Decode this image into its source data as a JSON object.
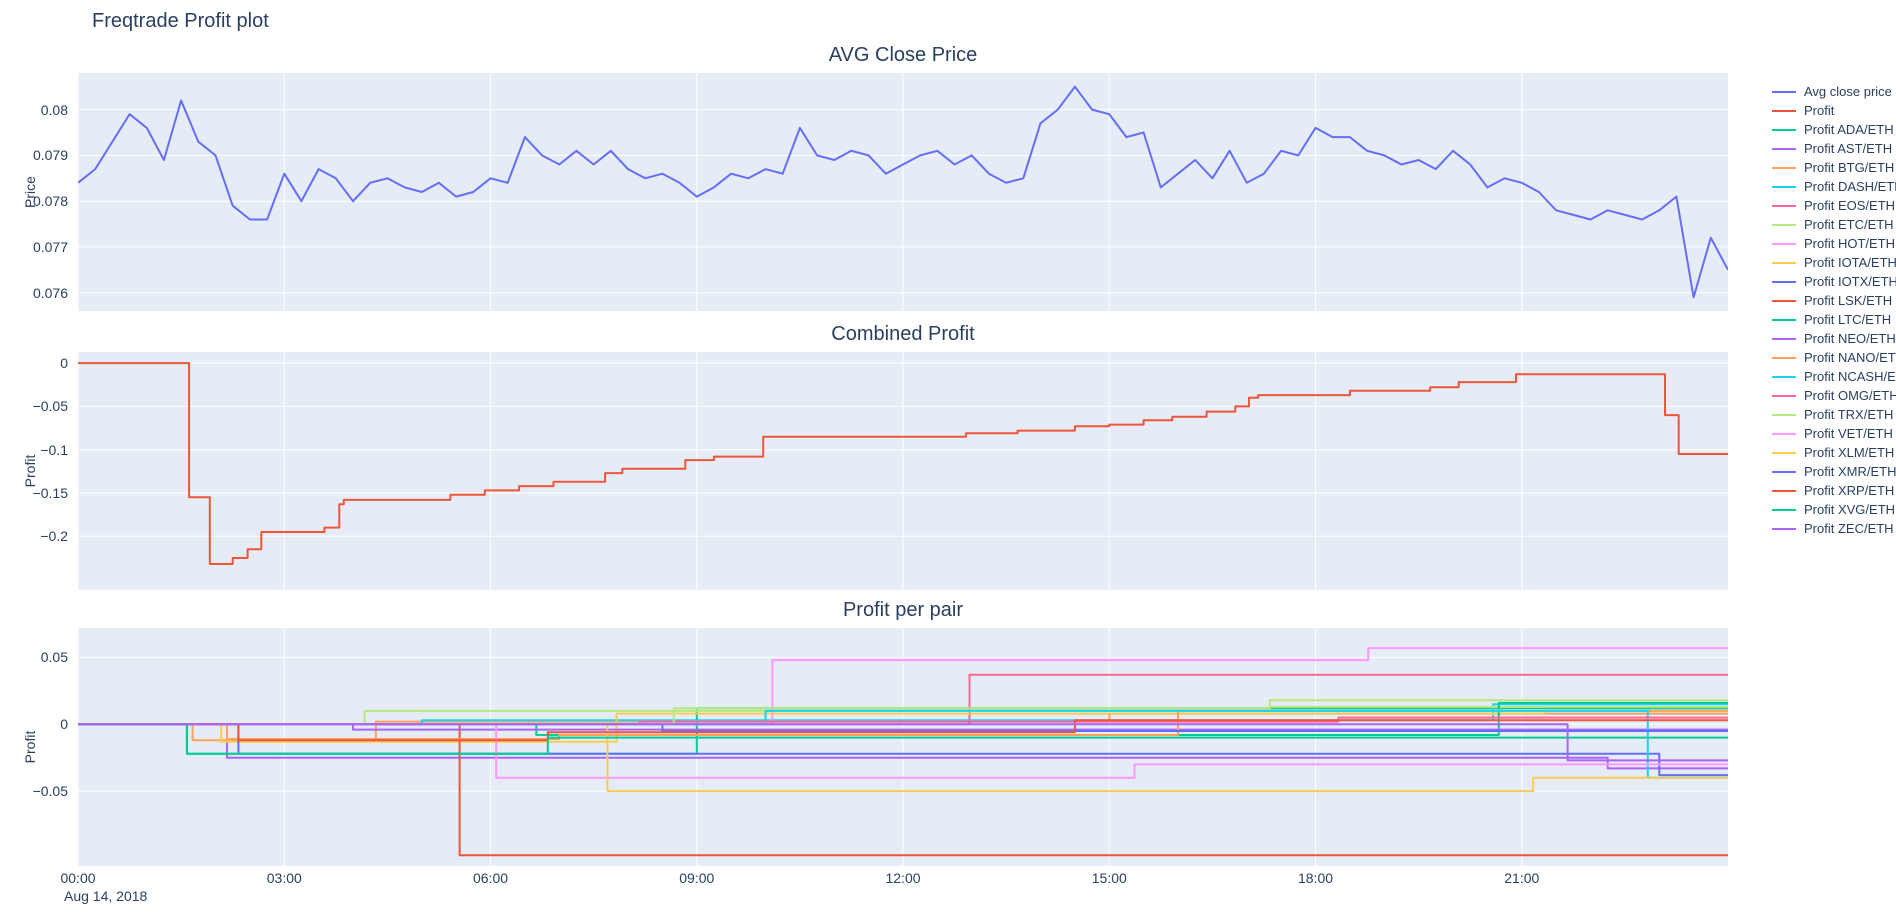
{
  "figure": {
    "title": "Freqtrade Profit plot"
  },
  "x_axis": {
    "date_label": "Aug 14, 2018",
    "range_minutes": [
      0,
      1440
    ],
    "ticks": [
      {
        "minutes": 0,
        "label": "00:00"
      },
      {
        "minutes": 180,
        "label": "03:00"
      },
      {
        "minutes": 360,
        "label": "06:00"
      },
      {
        "minutes": 540,
        "label": "09:00"
      },
      {
        "minutes": 720,
        "label": "12:00"
      },
      {
        "minutes": 900,
        "label": "15:00"
      },
      {
        "minutes": 1080,
        "label": "18:00"
      },
      {
        "minutes": 1260,
        "label": "21:00"
      }
    ]
  },
  "colors": {
    "plot_bg": "#E5ECF6",
    "grid": "#ffffff",
    "text": "#2a3f5f"
  },
  "chart_data": [
    {
      "type": "line",
      "title": "AVG Close Price",
      "ylabel": "Price",
      "ylim": [
        0.0756,
        0.0808
      ],
      "yticks": [
        {
          "value": 0.08,
          "label": "0.08"
        },
        {
          "value": 0.079,
          "label": "0.079"
        },
        {
          "value": 0.078,
          "label": "0.078"
        },
        {
          "value": 0.077,
          "label": "0.077"
        },
        {
          "value": 0.076,
          "label": "0.076"
        }
      ],
      "series": [
        {
          "name": "Avg close price",
          "color": "#636efa",
          "x_step_minutes": 15,
          "values": [
            0.0784,
            0.0787,
            0.0793,
            0.0799,
            0.0796,
            0.0789,
            0.0802,
            0.0793,
            0.079,
            0.0779,
            0.0776,
            0.0776,
            0.0786,
            0.078,
            0.0787,
            0.0785,
            0.078,
            0.0784,
            0.0785,
            0.0783,
            0.0782,
            0.0784,
            0.0781,
            0.0782,
            0.0785,
            0.0784,
            0.0794,
            0.079,
            0.0788,
            0.0791,
            0.0788,
            0.0791,
            0.0787,
            0.0785,
            0.0786,
            0.0784,
            0.0781,
            0.0783,
            0.0786,
            0.0785,
            0.0787,
            0.0786,
            0.0796,
            0.079,
            0.0789,
            0.0791,
            0.079,
            0.0786,
            0.0788,
            0.079,
            0.0791,
            0.0788,
            0.079,
            0.0786,
            0.0784,
            0.0785,
            0.0797,
            0.08,
            0.0805,
            0.08,
            0.0799,
            0.0794,
            0.0795,
            0.0783,
            0.0786,
            0.0789,
            0.0785,
            0.0791,
            0.0784,
            0.0786,
            0.0791,
            0.079,
            0.0796,
            0.0794,
            0.0794,
            0.0791,
            0.079,
            0.0788,
            0.0789,
            0.0787,
            0.0791,
            0.0788,
            0.0783,
            0.0785,
            0.0784,
            0.0782,
            0.0778,
            0.0777,
            0.0776,
            0.0778,
            0.0777,
            0.0776,
            0.0778,
            0.0781,
            0.0759,
            0.0772,
            0.0765
          ]
        }
      ]
    },
    {
      "type": "step",
      "title": "Combined Profit",
      "ylabel": "Profit",
      "ylim": [
        -0.262,
        0.0128
      ],
      "yticks": [
        {
          "value": 0,
          "label": "0"
        },
        {
          "value": -0.05,
          "label": "−0.05"
        },
        {
          "value": -0.1,
          "label": "−0.1"
        },
        {
          "value": -0.15,
          "label": "−0.15"
        },
        {
          "value": -0.2,
          "label": "−0.2"
        }
      ],
      "series": [
        {
          "name": "Profit",
          "color": "#EF553B",
          "points": [
            [
              0,
              0
            ],
            [
              97,
              -0.155
            ],
            [
              115,
              -0.232
            ],
            [
              135,
              -0.225
            ],
            [
              148,
              -0.215
            ],
            [
              160,
              -0.195
            ],
            [
              215,
              -0.19
            ],
            [
              228,
              -0.163
            ],
            [
              232,
              -0.158
            ],
            [
              325,
              -0.152
            ],
            [
              355,
              -0.147
            ],
            [
              385,
              -0.142
            ],
            [
              415,
              -0.137
            ],
            [
              460,
              -0.127
            ],
            [
              475,
              -0.122
            ],
            [
              530,
              -0.112
            ],
            [
              555,
              -0.108
            ],
            [
              598,
              -0.085
            ],
            [
              775,
              -0.081
            ],
            [
              820,
              -0.078
            ],
            [
              870,
              -0.073
            ],
            [
              900,
              -0.071
            ],
            [
              930,
              -0.066
            ],
            [
              955,
              -0.062
            ],
            [
              985,
              -0.056
            ],
            [
              1010,
              -0.05
            ],
            [
              1022,
              -0.04
            ],
            [
              1030,
              -0.037
            ],
            [
              1110,
              -0.032
            ],
            [
              1180,
              -0.028
            ],
            [
              1205,
              -0.022
            ],
            [
              1255,
              -0.013
            ],
            [
              1385,
              -0.06
            ],
            [
              1397,
              -0.105
            ]
          ]
        }
      ]
    },
    {
      "type": "step",
      "title": "Profit per pair",
      "ylabel": "Profit",
      "ylim": [
        -0.106,
        0.072
      ],
      "yticks": [
        {
          "value": 0.05,
          "label": "0.05"
        },
        {
          "value": 0,
          "label": "0"
        },
        {
          "value": -0.05,
          "label": "−0.05"
        }
      ],
      "series": [
        {
          "name": "Profit ADA/ETH",
          "color": "#00cc96",
          "points": [
            [
              0,
              0
            ],
            [
              95,
              -0.022
            ],
            [
              540,
              0.012
            ]
          ]
        },
        {
          "name": "Profit AST/ETH",
          "color": "#ab63fa",
          "points": [
            [
              0,
              0
            ],
            [
              130,
              -0.025
            ],
            [
              1335,
              -0.033
            ]
          ]
        },
        {
          "name": "Profit BTG/ETH",
          "color": "#FFA15A",
          "points": [
            [
              0,
              0
            ],
            [
              100,
              -0.012
            ],
            [
              260,
              0.002
            ],
            [
              900,
              0.008
            ]
          ]
        },
        {
          "name": "Profit DASH/ETH",
          "color": "#19d3f3",
          "points": [
            [
              0,
              0
            ],
            [
              300,
              0.003
            ],
            [
              1235,
              0.015
            ]
          ]
        },
        {
          "name": "Profit EOS/ETH",
          "color": "#FF6692",
          "points": [
            [
              0,
              0
            ],
            [
              778,
              0.037
            ]
          ]
        },
        {
          "name": "Profit ETC/ETH",
          "color": "#B6E880",
          "points": [
            [
              0,
              0
            ],
            [
              250,
              0.01
            ],
            [
              1040,
              0.013
            ]
          ]
        },
        {
          "name": "Profit HOT/ETH",
          "color": "#FF97FF",
          "points": [
            [
              0,
              0
            ],
            [
              606,
              0.048
            ],
            [
              1126,
              0.057
            ]
          ]
        },
        {
          "name": "Profit IOTA/ETH",
          "color": "#FECB52",
          "points": [
            [
              0,
              0
            ],
            [
              125,
              -0.013
            ],
            [
              470,
              0.008
            ],
            [
              1280,
              0.01
            ]
          ]
        },
        {
          "name": "Profit IOTX/ETH",
          "color": "#636efa",
          "points": [
            [
              0,
              0
            ],
            [
              140,
              -0.022
            ],
            [
              1380,
              -0.038
            ]
          ]
        },
        {
          "name": "Profit LSK/ETH",
          "color": "#EF553B",
          "points": [
            [
              0,
              0
            ],
            [
              333,
              -0.098
            ]
          ]
        },
        {
          "name": "Profit LTC/ETH",
          "color": "#00cc96",
          "points": [
            [
              0,
              0
            ],
            [
              400,
              -0.008
            ],
            [
              1240,
              0.016
            ]
          ]
        },
        {
          "name": "Profit NEO/ETH",
          "color": "#ab63fa",
          "points": [
            [
              0,
              0
            ],
            [
              240,
              -0.004
            ]
          ]
        },
        {
          "name": "Profit NANO/ETH",
          "color": "#FFA15A",
          "points": [
            [
              0,
              0
            ],
            [
              130,
              -0.011
            ],
            [
              420,
              -0.008
            ],
            [
              960,
              0.01
            ]
          ]
        },
        {
          "name": "Profit NCASH/ETH",
          "color": "#19d3f3",
          "points": [
            [
              0,
              0
            ],
            [
              600,
              0.01
            ],
            [
              1370,
              -0.04
            ]
          ]
        },
        {
          "name": "Profit OMG/ETH",
          "color": "#FF6692",
          "points": [
            [
              0,
              0
            ],
            [
              490,
              0.002
            ],
            [
              1100,
              0.005
            ]
          ]
        },
        {
          "name": "Profit TRX/ETH",
          "color": "#B6E880",
          "points": [
            [
              0,
              0
            ],
            [
              520,
              0.012
            ],
            [
              1040,
              0.018
            ]
          ]
        },
        {
          "name": "Profit VET/ETH",
          "color": "#FF97FF",
          "points": [
            [
              0,
              0
            ],
            [
              365,
              -0.04
            ],
            [
              922,
              -0.03
            ]
          ]
        },
        {
          "name": "Profit XLM/ETH",
          "color": "#FECB52",
          "points": [
            [
              0,
              0
            ],
            [
              462,
              -0.05
            ],
            [
              1270,
              -0.04
            ]
          ]
        },
        {
          "name": "Profit XMR/ETH",
          "color": "#636efa",
          "points": [
            [
              0,
              0
            ],
            [
              510,
              -0.005
            ]
          ]
        },
        {
          "name": "Profit XRP/ETH",
          "color": "#EF553B",
          "points": [
            [
              0,
              0
            ],
            [
              140,
              -0.012
            ],
            [
              410,
              -0.006
            ],
            [
              870,
              0.003
            ]
          ]
        },
        {
          "name": "Profit XVG/ETH",
          "color": "#00cc96",
          "points": [
            [
              0,
              0
            ],
            [
              95,
              -0.022
            ],
            [
              410,
              -0.01
            ]
          ]
        },
        {
          "name": "Profit ZEC/ETH",
          "color": "#ab63fa",
          "points": [
            [
              0,
              0
            ],
            [
              1300,
              -0.027
            ]
          ]
        }
      ]
    }
  ],
  "legend": {
    "items": [
      {
        "label": "Avg close price",
        "color": "#636efa"
      },
      {
        "label": "Profit",
        "color": "#EF553B"
      },
      {
        "label": "Profit ADA/ETH",
        "color": "#00cc96"
      },
      {
        "label": "Profit AST/ETH",
        "color": "#ab63fa"
      },
      {
        "label": "Profit BTG/ETH",
        "color": "#FFA15A"
      },
      {
        "label": "Profit DASH/ETH",
        "color": "#19d3f3"
      },
      {
        "label": "Profit EOS/ETH",
        "color": "#FF6692"
      },
      {
        "label": "Profit ETC/ETH",
        "color": "#B6E880"
      },
      {
        "label": "Profit HOT/ETH",
        "color": "#FF97FF"
      },
      {
        "label": "Profit IOTA/ETH",
        "color": "#FECB52"
      },
      {
        "label": "Profit IOTX/ETH",
        "color": "#636efa"
      },
      {
        "label": "Profit LSK/ETH",
        "color": "#EF553B"
      },
      {
        "label": "Profit LTC/ETH",
        "color": "#00cc96"
      },
      {
        "label": "Profit NEO/ETH",
        "color": "#ab63fa"
      },
      {
        "label": "Profit NANO/ETH",
        "color": "#FFA15A"
      },
      {
        "label": "Profit NCASH/ETH",
        "color": "#19d3f3"
      },
      {
        "label": "Profit OMG/ETH",
        "color": "#FF6692"
      },
      {
        "label": "Profit TRX/ETH",
        "color": "#B6E880"
      },
      {
        "label": "Profit VET/ETH",
        "color": "#FF97FF"
      },
      {
        "label": "Profit XLM/ETH",
        "color": "#FECB52"
      },
      {
        "label": "Profit XMR/ETH",
        "color": "#636efa"
      },
      {
        "label": "Profit XRP/ETH",
        "color": "#EF553B"
      },
      {
        "label": "Profit XVG/ETH",
        "color": "#00cc96"
      },
      {
        "label": "Profit ZEC/ETH",
        "color": "#ab63fa"
      }
    ]
  }
}
